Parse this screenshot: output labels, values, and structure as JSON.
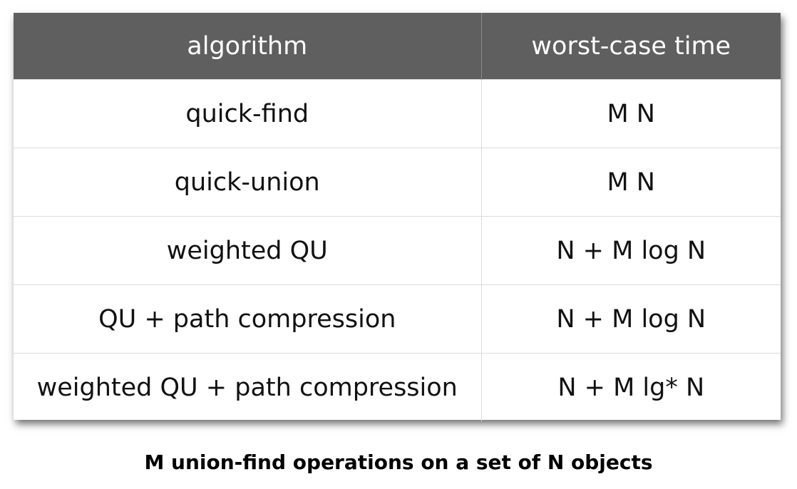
{
  "table": {
    "headers": [
      "algorithm",
      "worst-case time"
    ],
    "rows": [
      [
        "quick-find",
        "M N"
      ],
      [
        "quick-union",
        "M N"
      ],
      [
        "weighted QU",
        "N + M log N"
      ],
      [
        "QU + path compression",
        "N + M log N"
      ],
      [
        "weighted QU + path compression",
        "N + M lg* N"
      ]
    ]
  },
  "caption": "M union-find operations on a set of N objects"
}
